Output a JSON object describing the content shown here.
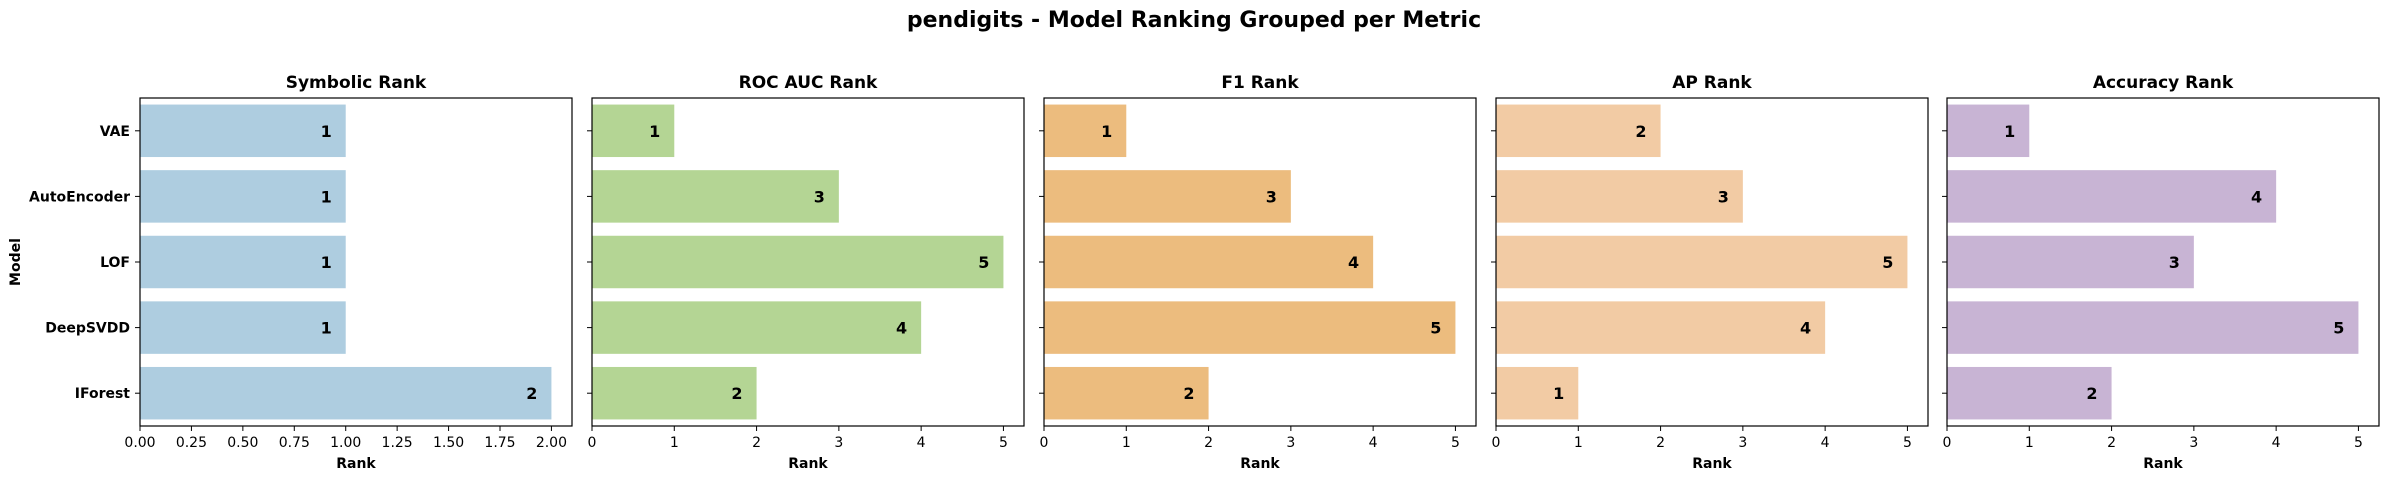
{
  "figure": {
    "title": "pendigits - Model Ranking Grouped per Metric",
    "ylabel": "Model"
  },
  "chart_data": [
    {
      "type": "bar",
      "orientation": "horizontal",
      "title": "Symbolic Rank",
      "xlabel": "Rank",
      "ylabel": "Model",
      "categories": [
        "VAE",
        "AutoEncoder",
        "LOF",
        "DeepSVDD",
        "IForest"
      ],
      "values": [
        1,
        1,
        1,
        1,
        2
      ],
      "xlim": [
        0,
        2.1
      ],
      "xticks": [
        "0.00",
        "0.25",
        "0.50",
        "0.75",
        "1.00",
        "1.25",
        "1.50",
        "1.75",
        "2.00"
      ],
      "xtick_values": [
        0,
        0.25,
        0.5,
        0.75,
        1.0,
        1.25,
        1.5,
        1.75,
        2.0
      ],
      "color": "#aecde0"
    },
    {
      "type": "bar",
      "orientation": "horizontal",
      "title": "ROC AUC Rank",
      "xlabel": "Rank",
      "categories": [
        "VAE",
        "AutoEncoder",
        "LOF",
        "DeepSVDD",
        "IForest"
      ],
      "values": [
        1,
        3,
        5,
        4,
        2
      ],
      "xlim": [
        0,
        5.25
      ],
      "xticks": [
        "0",
        "1",
        "2",
        "3",
        "4",
        "5"
      ],
      "xtick_values": [
        0,
        1,
        2,
        3,
        4,
        5
      ],
      "color": "#b4d594"
    },
    {
      "type": "bar",
      "orientation": "horizontal",
      "title": "F1 Rank",
      "xlabel": "Rank",
      "categories": [
        "VAE",
        "AutoEncoder",
        "LOF",
        "DeepSVDD",
        "IForest"
      ],
      "values": [
        1,
        3,
        4,
        5,
        2
      ],
      "xlim": [
        0,
        5.25
      ],
      "xticks": [
        "0",
        "1",
        "2",
        "3",
        "4",
        "5"
      ],
      "xtick_values": [
        0,
        1,
        2,
        3,
        4,
        5
      ],
      "color": "#ecbc7e"
    },
    {
      "type": "bar",
      "orientation": "horizontal",
      "title": "AP Rank",
      "xlabel": "Rank",
      "categories": [
        "VAE",
        "AutoEncoder",
        "LOF",
        "DeepSVDD",
        "IForest"
      ],
      "values": [
        2,
        3,
        5,
        4,
        1
      ],
      "xlim": [
        0,
        5.25
      ],
      "xticks": [
        "0",
        "1",
        "2",
        "3",
        "4",
        "5"
      ],
      "xtick_values": [
        0,
        1,
        2,
        3,
        4,
        5
      ],
      "color": "#f2cba4"
    },
    {
      "type": "bar",
      "orientation": "horizontal",
      "title": "Accuracy Rank",
      "xlabel": "Rank",
      "categories": [
        "VAE",
        "AutoEncoder",
        "LOF",
        "DeepSVDD",
        "IForest"
      ],
      "values": [
        1,
        4,
        3,
        5,
        2
      ],
      "xlim": [
        0,
        5.25
      ],
      "xticks": [
        "0",
        "1",
        "2",
        "3",
        "4",
        "5"
      ],
      "xtick_values": [
        0,
        1,
        2,
        3,
        4,
        5
      ],
      "color": "#c8b4d4"
    }
  ]
}
